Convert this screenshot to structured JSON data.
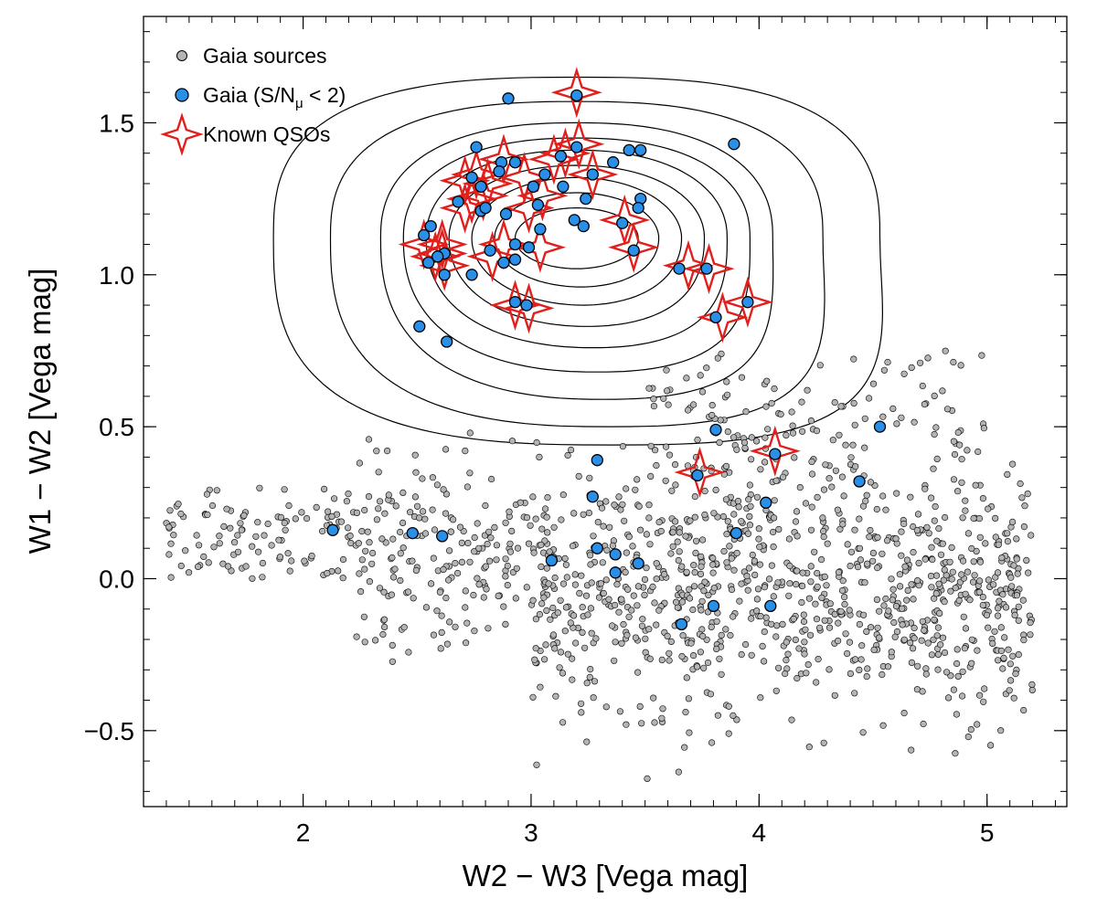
{
  "chart_data": {
    "type": "scatter",
    "xlabel": "W2 − W3  [Vega mag]",
    "ylabel": "W1 − W2  [Vega mag]",
    "xlim": [
      1.3,
      5.35
    ],
    "ylim": [
      -0.75,
      1.85
    ],
    "xticks": [
      {
        "value": 2,
        "label": "2"
      },
      {
        "value": 3,
        "label": "3"
      },
      {
        "value": 4,
        "label": "4"
      },
      {
        "value": 5,
        "label": "5"
      }
    ],
    "yticks": [
      {
        "value": 1.5,
        "label": "1.5"
      },
      {
        "value": 1.0,
        "label": "1.0"
      },
      {
        "value": 0.5,
        "label": "0.5"
      },
      {
        "value": 0.0,
        "label": "0.0"
      },
      {
        "value": -0.5,
        "label": "−0.5"
      }
    ],
    "legend": {
      "position": "top-left",
      "items": [
        {
          "label": "Gaia sources",
          "symbol": "grey-dot"
        },
        {
          "label": "Gaia (S/N",
          "sub": "μ",
          "suffix": " < 2)",
          "symbol": "blue-dot"
        },
        {
          "label": "Known QSOs",
          "symbol": "red-star"
        }
      ]
    },
    "colors": {
      "gaia_fill": "#b4b4b4",
      "blue_fill": "#2a8fe6",
      "star_stroke": "#e0201c",
      "contour": "#000000"
    },
    "series": [
      {
        "name": "Gaia sources",
        "note": "approx. 1500 field sources; drawn as a generated cloud",
        "count": 1500,
        "regions": [
          {
            "x_range": [
              1.4,
              5.2
            ],
            "y_center": 0.1,
            "y_spread": 0.22
          },
          {
            "x_range": [
              3.0,
              5.2
            ],
            "y_center": -0.2,
            "y_spread": 0.25
          },
          {
            "x_range": [
              3.5,
              5.0
            ],
            "y_center": 0.45,
            "y_spread": 0.25
          }
        ]
      },
      {
        "name": "Gaia (S/N_mu < 2)",
        "points": [
          [
            2.9,
            1.58
          ],
          [
            3.2,
            1.59
          ],
          [
            3.89,
            1.43
          ],
          [
            2.76,
            1.42
          ],
          [
            3.2,
            1.42
          ],
          [
            3.43,
            1.41
          ],
          [
            3.48,
            1.41
          ],
          [
            2.87,
            1.37
          ],
          [
            2.93,
            1.37
          ],
          [
            3.13,
            1.39
          ],
          [
            3.36,
            1.37
          ],
          [
            2.86,
            1.34
          ],
          [
            2.74,
            1.32
          ],
          [
            3.06,
            1.33
          ],
          [
            3.27,
            1.33
          ],
          [
            2.78,
            1.29
          ],
          [
            3.01,
            1.29
          ],
          [
            3.14,
            1.29
          ],
          [
            3.24,
            1.25
          ],
          [
            3.48,
            1.25
          ],
          [
            2.68,
            1.24
          ],
          [
            3.03,
            1.23
          ],
          [
            2.78,
            1.21
          ],
          [
            2.8,
            1.22
          ],
          [
            3.47,
            1.22
          ],
          [
            2.89,
            1.2
          ],
          [
            3.19,
            1.18
          ],
          [
            3.4,
            1.17
          ],
          [
            2.56,
            1.16
          ],
          [
            3.04,
            1.15
          ],
          [
            3.23,
            1.16
          ],
          [
            2.53,
            1.13
          ],
          [
            2.93,
            1.1
          ],
          [
            2.99,
            1.09
          ],
          [
            3.45,
            1.08
          ],
          [
            2.82,
            1.08
          ],
          [
            2.62,
            1.07
          ],
          [
            2.59,
            1.06
          ],
          [
            2.55,
            1.04
          ],
          [
            2.88,
            1.04
          ],
          [
            2.93,
            1.05
          ],
          [
            2.62,
            1.0
          ],
          [
            2.74,
            1.0
          ],
          [
            3.65,
            1.02
          ],
          [
            3.77,
            1.02
          ],
          [
            2.93,
            0.91
          ],
          [
            2.98,
            0.9
          ],
          [
            3.95,
            0.91
          ],
          [
            3.81,
            0.86
          ],
          [
            2.51,
            0.83
          ],
          [
            2.63,
            0.78
          ],
          [
            3.81,
            0.49
          ],
          [
            4.53,
            0.5
          ],
          [
            4.07,
            0.41
          ],
          [
            3.29,
            0.39
          ],
          [
            3.73,
            0.34
          ],
          [
            4.44,
            0.32
          ],
          [
            3.27,
            0.27
          ],
          [
            4.03,
            0.25
          ],
          [
            2.13,
            0.16
          ],
          [
            2.48,
            0.15
          ],
          [
            2.61,
            0.14
          ],
          [
            3.9,
            0.15
          ],
          [
            3.29,
            0.1
          ],
          [
            3.37,
            0.08
          ],
          [
            3.09,
            0.06
          ],
          [
            3.47,
            0.05
          ],
          [
            3.37,
            0.02
          ],
          [
            3.8,
            -0.09
          ],
          [
            4.05,
            -0.09
          ],
          [
            3.66,
            -0.15
          ]
        ]
      },
      {
        "name": "Known QSOs",
        "points": [
          [
            3.2,
            1.6
          ],
          [
            3.21,
            1.43
          ],
          [
            3.15,
            1.4
          ],
          [
            3.1,
            1.38
          ],
          [
            2.88,
            1.38
          ],
          [
            3.27,
            1.33
          ],
          [
            2.76,
            1.33
          ],
          [
            2.97,
            1.32
          ],
          [
            2.71,
            1.31
          ],
          [
            2.81,
            1.3
          ],
          [
            2.79,
            1.26
          ],
          [
            3.05,
            1.26
          ],
          [
            2.74,
            1.25
          ],
          [
            2.71,
            1.22
          ],
          [
            2.99,
            1.22
          ],
          [
            3.41,
            1.18
          ],
          [
            2.53,
            1.1
          ],
          [
            2.61,
            1.1
          ],
          [
            2.88,
            1.1
          ],
          [
            3.04,
            1.09
          ],
          [
            2.61,
            1.07
          ],
          [
            2.58,
            1.06
          ],
          [
            3.45,
            1.09
          ],
          [
            2.83,
            1.06
          ],
          [
            2.62,
            1.03
          ],
          [
            3.69,
            1.03
          ],
          [
            3.78,
            1.02
          ],
          [
            2.93,
            0.9
          ],
          [
            2.99,
            0.89
          ],
          [
            3.95,
            0.91
          ],
          [
            3.84,
            0.86
          ],
          [
            4.07,
            0.42
          ],
          [
            3.74,
            0.35
          ]
        ]
      }
    ],
    "contours": {
      "center": [
        3.2,
        1.12
      ],
      "levels": [
        {
          "rx": 1.33,
          "ry_top": 0.53,
          "ry_bot": 0.68,
          "skew": 0.17,
          "exp": 2.8
        },
        {
          "rx": 1.08,
          "ry_top": 0.45,
          "ry_bot": 0.62,
          "skew": 0.16,
          "exp": 2.6
        },
        {
          "rx": 0.86,
          "ry_top": 0.38,
          "ry_bot": 0.53,
          "skew": 0.13,
          "exp": 2.4
        },
        {
          "rx": 0.76,
          "ry_top": 0.33,
          "ry_bot": 0.44,
          "skew": 0.1,
          "exp": 2.3
        },
        {
          "rx": 0.66,
          "ry_top": 0.29,
          "ry_bot": 0.36,
          "skew": 0.08,
          "exp": 2.2
        },
        {
          "rx": 0.56,
          "ry_top": 0.24,
          "ry_bot": 0.29,
          "skew": 0.05,
          "exp": 2.1
        },
        {
          "rx": 0.46,
          "ry_top": 0.2,
          "ry_bot": 0.22,
          "skew": 0.03,
          "exp": 2.0
        },
        {
          "rx": 0.36,
          "ry_top": 0.15,
          "ry_bot": 0.16,
          "skew": 0.02,
          "exp": 2.0
        },
        {
          "rx": 0.27,
          "ry_top": 0.1,
          "ry_bot": 0.1,
          "skew": 0.0,
          "exp": 2.0
        }
      ]
    }
  }
}
